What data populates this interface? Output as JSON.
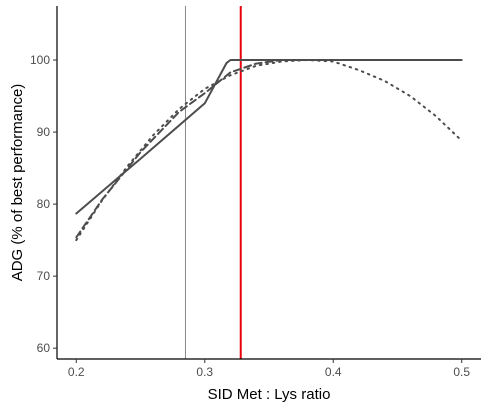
{
  "chart_data": {
    "type": "line",
    "title": "",
    "xlabel": "SID Met : Lys ratio",
    "ylabel": "ADG (% of best performance)",
    "xlim": [
      0.185,
      0.515
    ],
    "ylim": [
      58.5,
      107.5
    ],
    "xticks": [
      0.2,
      0.3,
      0.4,
      0.5
    ],
    "yticks": [
      60,
      70,
      80,
      90,
      100
    ],
    "xtick_labels": [
      "0.2",
      "0.3",
      "0.4",
      "0.5"
    ],
    "ytick_labels": [
      "60",
      "70",
      "80",
      "90",
      "100"
    ],
    "grid": false,
    "legend": "none",
    "series": [
      {
        "style": "solid",
        "color": "#4d4d4d",
        "x": [
          0.2,
          0.25,
          0.3,
          0.317,
          0.32,
          0.33,
          0.35,
          0.4,
          0.45,
          0.5
        ],
        "y": [
          78.7,
          86.3,
          94.0,
          99.6,
          100.0,
          100.0,
          100.0,
          100.0,
          100.0,
          100.0
        ]
      },
      {
        "style": "dashed",
        "color": "#4d4d4d",
        "x": [
          0.2,
          0.22,
          0.25,
          0.28,
          0.3,
          0.32,
          0.34,
          0.36,
          0.4,
          0.45,
          0.5
        ],
        "y": [
          75.4,
          80.6,
          87.2,
          92.8,
          95.4,
          98.3,
          99.5,
          100.0,
          100.0,
          100.0,
          100.0
        ]
      },
      {
        "style": "dotted",
        "color": "#4d4d4d",
        "x": [
          0.2,
          0.22,
          0.24,
          0.26,
          0.28,
          0.3,
          0.32,
          0.34,
          0.36,
          0.38,
          0.4,
          0.42,
          0.44,
          0.46,
          0.48,
          0.5
        ],
        "y": [
          75.0,
          80.5,
          85.3,
          89.6,
          93.2,
          96.0,
          97.9,
          99.2,
          99.8,
          100.0,
          99.8,
          98.6,
          97.1,
          95.0,
          92.2,
          88.8
        ]
      }
    ],
    "vlines": [
      {
        "x": 0.285,
        "color": "#888888",
        "width": 1
      },
      {
        "x": 0.328,
        "color": "#e8000b",
        "width": 2
      }
    ]
  }
}
